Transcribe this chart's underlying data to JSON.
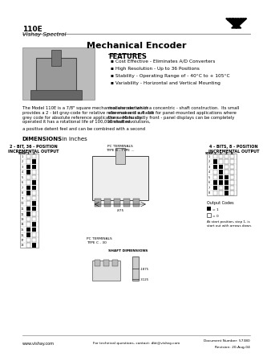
{
  "title_line1": "110E",
  "title_line2": "Vishay Spectrol",
  "main_title": "Mechanical Encoder",
  "features_title": "FEATURES",
  "features": [
    "Cost Effective - Eliminates A/D Converters",
    "High Resolution - Up to 36 Positions",
    "Stability - Operating Range of - 40°C to + 105°C",
    "Variability - Horizontal and Vertical Mounting"
  ],
  "desc1": "The Model 110E is a 7/8\" square mechanical encoder which\nprovides a 2 - bit gray-code for relative reference and a 4 - bit\ngrey code for absolute reference applications.  Manually\noperated it has a rotational life of 100,000 shaft revolutions,",
  "desc2": "a positive detent feel and can be combined with a second",
  "desc3": "modular section in a concentric - shaft construction.  Its small\nsize makes it suitable for panel-mounted applications where\nthe need for costly front - panel displays can be completely\neliminated.",
  "dimensions_label": "DIMENSIONS in inches",
  "label_2bit": "2 - BIT, 36 - POSITION\nINCREMENTAL OUTPUT",
  "label_4bit": "4 - BITS, 8 - POSITION\nINCREMENTAL OUTPUT",
  "label_pc_b": "PC TERMINALS\nTYPE B - TYPE ...",
  "label_pc_c": "PC TERMINALS\nTYPE C - 30",
  "output_codes": "Output Codes",
  "output_note": "At start position, step 1, is\nstart out with arrows down.",
  "footer_left": "www.vishay.com",
  "footer_center": "For technical questions, contact: dbt@vishay.com",
  "footer_doc": "Document Number: 57380",
  "footer_rev": "Revision: 20-Aug-04",
  "bg_color": "#ffffff",
  "header_line_color": "#999999",
  "text_color": "#000000",
  "blue_color": "#aaccee"
}
